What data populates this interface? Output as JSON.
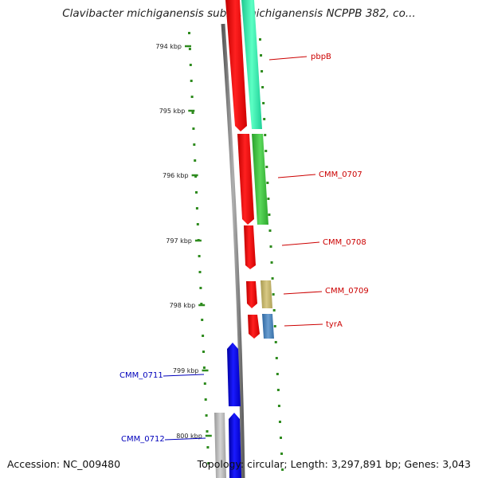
{
  "title": "Clavibacter michiganensis subsp. michiganensis NCPPB 382, co...",
  "footer": {
    "accession": "Accession: NC_009480",
    "topology": "Topology: circular; Length: 3,297,891 bp; Genes: 3,043"
  },
  "colors": {
    "ruler_dots": "#2e8b1e",
    "forward_label": "#cc0000",
    "reverse_label": "#0000bb",
    "backbone": "#777777"
  },
  "ruler": {
    "ticks": [
      {
        "label": "794 kbp"
      },
      {
        "label": "795 kbp"
      },
      {
        "label": "796 kbp"
      },
      {
        "label": "797 kbp"
      },
      {
        "label": "798 kbp"
      },
      {
        "label": "799 kbp"
      },
      {
        "label": "800 kbp"
      }
    ]
  },
  "genes": [
    {
      "name": "pbpB",
      "strand": "forward",
      "color": "#ff0000",
      "cog_color": "#33f0a8"
    },
    {
      "name": "CMM_0707",
      "strand": "forward",
      "color": "#ff0000",
      "cog_color": "#3ec43e"
    },
    {
      "name": "CMM_0708",
      "strand": "forward",
      "color": "#ff0000",
      "cog_color": ""
    },
    {
      "name": "CMM_0709",
      "strand": "forward",
      "color": "#ff0000",
      "cog_color": "#c4b469"
    },
    {
      "name": "tyrA",
      "strand": "forward",
      "color": "#ff0000",
      "cog_color": "#4a80b8"
    },
    {
      "name": "CMM_0711",
      "strand": "reverse",
      "color": "#0000ee",
      "cog_color": ""
    },
    {
      "name": "CMM_0712",
      "strand": "reverse",
      "color": "#0000ee",
      "cog_color": "#b8b8b8"
    }
  ]
}
